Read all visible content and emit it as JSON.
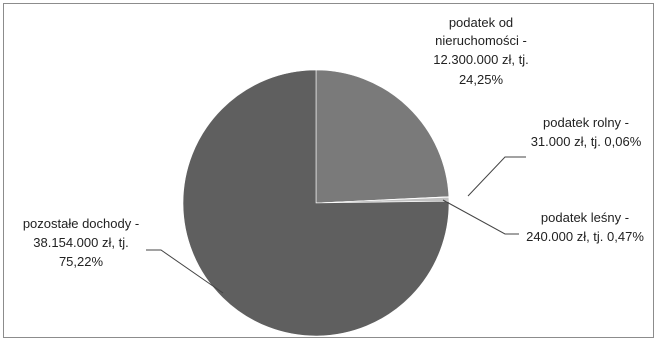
{
  "chart_data": {
    "type": "pie",
    "slices": [
      {
        "name": "podatek od nieruchomości",
        "value": 12300000,
        "percent": 24.25,
        "label_lines": [
          "podatek od",
          "nieruchomości -",
          "12.300.000 zł, tj.",
          "24,25%"
        ],
        "color": "#7a7a7a"
      },
      {
        "name": "podatek rolny",
        "value": 31000,
        "percent": 0.06,
        "label_lines": [
          "podatek rolny -",
          "31.000 zł, tj. 0,06%"
        ],
        "color": "#9a9a9a"
      },
      {
        "name": "podatek leśny",
        "value": 240000,
        "percent": 0.47,
        "label_lines": [
          "podatek leśny -",
          "240.000 zł, tj. 0,47%"
        ],
        "color": "#c2c2c2"
      },
      {
        "name": "pozostałe dochody",
        "value": 38154000,
        "percent": 75.22,
        "label_lines": [
          "pozostałe dochody -",
          "38.154.000 zł, tj.",
          "75,22%"
        ],
        "color": "#5f5f5f"
      }
    ]
  }
}
